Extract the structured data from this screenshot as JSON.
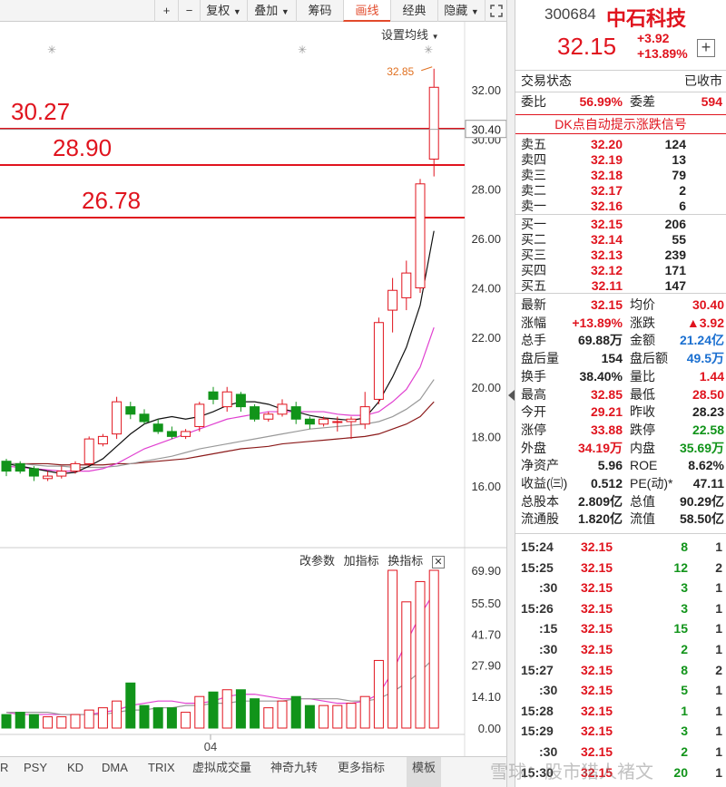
{
  "toolbar": {
    "buttons": [
      "+",
      "−",
      "复权",
      "叠加",
      "筹码",
      "画线",
      "经典",
      "隐藏"
    ],
    "active": "画线",
    "expand_icon": "expand-icon"
  },
  "chart": {
    "ma_setting": "设置均线",
    "high_label": "32.85",
    "cursor_price": "30.40",
    "price_ticks": [
      "32.00",
      "30.00",
      "28.00",
      "26.00",
      "24.00",
      "22.00",
      "20.00",
      "18.00",
      "16.00"
    ],
    "lines": [
      {
        "label": "30.27"
      },
      {
        "label": "28.90"
      },
      {
        "label": "26.78"
      }
    ],
    "indicator_buttons": [
      "改参数",
      "加指标",
      "换指标"
    ],
    "vol_ticks": [
      "69.90",
      "55.50",
      "41.70",
      "27.90",
      "14.10",
      "0.00"
    ],
    "date_label": "04"
  },
  "chart_data": {
    "type": "candlestick",
    "price_ylim": [
      15,
      33.2
    ],
    "vol_ylim": [
      0,
      70
    ],
    "candles": [
      {
        "o": 17.0,
        "c": 16.6,
        "h": 17.1,
        "l": 16.4,
        "v": 6
      },
      {
        "o": 16.9,
        "c": 16.6,
        "h": 17.0,
        "l": 16.5,
        "v": 7
      },
      {
        "o": 16.7,
        "c": 16.4,
        "h": 16.8,
        "l": 16.2,
        "v": 6
      },
      {
        "o": 16.3,
        "c": 16.4,
        "h": 16.6,
        "l": 16.2,
        "v": 5
      },
      {
        "o": 16.4,
        "c": 16.6,
        "h": 16.8,
        "l": 16.3,
        "v": 5
      },
      {
        "o": 16.6,
        "c": 16.9,
        "h": 17.0,
        "l": 16.5,
        "v": 6
      },
      {
        "o": 16.9,
        "c": 17.9,
        "h": 18.0,
        "l": 16.8,
        "v": 8
      },
      {
        "o": 17.7,
        "c": 18.0,
        "h": 18.1,
        "l": 17.6,
        "v": 9
      },
      {
        "o": 18.1,
        "c": 19.4,
        "h": 19.6,
        "l": 17.9,
        "v": 12
      },
      {
        "o": 19.2,
        "c": 18.9,
        "h": 19.4,
        "l": 18.7,
        "v": 20
      },
      {
        "o": 18.9,
        "c": 18.6,
        "h": 19.1,
        "l": 18.5,
        "v": 10
      },
      {
        "o": 18.5,
        "c": 18.2,
        "h": 18.7,
        "l": 18.1,
        "v": 9
      },
      {
        "o": 18.2,
        "c": 18.0,
        "h": 18.4,
        "l": 17.9,
        "v": 9
      },
      {
        "o": 18.0,
        "c": 18.2,
        "h": 18.3,
        "l": 17.9,
        "v": 7
      },
      {
        "o": 18.4,
        "c": 19.3,
        "h": 19.4,
        "l": 18.2,
        "v": 14
      },
      {
        "o": 19.8,
        "c": 19.5,
        "h": 20.0,
        "l": 19.3,
        "v": 16
      },
      {
        "o": 19.2,
        "c": 19.8,
        "h": 20.0,
        "l": 19.0,
        "v": 17
      },
      {
        "o": 19.7,
        "c": 19.2,
        "h": 19.8,
        "l": 19.0,
        "v": 17
      },
      {
        "o": 19.2,
        "c": 18.7,
        "h": 19.3,
        "l": 18.6,
        "v": 13
      },
      {
        "o": 18.7,
        "c": 18.9,
        "h": 19.0,
        "l": 18.6,
        "v": 9
      },
      {
        "o": 18.9,
        "c": 19.3,
        "h": 19.5,
        "l": 18.8,
        "v": 12
      },
      {
        "o": 19.2,
        "c": 18.7,
        "h": 19.4,
        "l": 18.5,
        "v": 14
      },
      {
        "o": 18.7,
        "c": 18.5,
        "h": 18.8,
        "l": 18.3,
        "v": 10
      },
      {
        "o": 18.5,
        "c": 18.7,
        "h": 18.8,
        "l": 18.4,
        "v": 10
      },
      {
        "o": 18.6,
        "c": 18.6,
        "h": 18.8,
        "l": 18.2,
        "v": 10
      },
      {
        "o": 18.6,
        "c": 18.7,
        "h": 18.8,
        "l": 17.9,
        "v": 11
      },
      {
        "o": 18.5,
        "c": 19.2,
        "h": 19.8,
        "l": 18.3,
        "v": 14
      },
      {
        "o": 19.5,
        "c": 22.6,
        "h": 22.8,
        "l": 19.3,
        "v": 30
      },
      {
        "o": 23.1,
        "c": 23.9,
        "h": 24.4,
        "l": 22.2,
        "v": 70
      },
      {
        "o": 23.6,
        "c": 24.6,
        "h": 25.1,
        "l": 23.1,
        "v": 56
      },
      {
        "o": 24.0,
        "c": 28.2,
        "h": 28.4,
        "l": 23.8,
        "v": 65
      },
      {
        "o": 29.2,
        "c": 32.1,
        "h": 32.85,
        "l": 28.5,
        "v": 70
      }
    ],
    "ma5": [
      16.9,
      16.8,
      16.7,
      16.6,
      16.5,
      16.55,
      16.8,
      17.1,
      17.6,
      18.1,
      18.5,
      18.7,
      18.8,
      18.7,
      18.8,
      19.0,
      19.25,
      19.4,
      19.4,
      19.3,
      19.1,
      19.0,
      18.85,
      18.75,
      18.7,
      18.65,
      18.75,
      19.4,
      20.4,
      21.6,
      23.3,
      26.3
    ],
    "ma10": [
      16.8,
      16.75,
      16.7,
      16.65,
      16.6,
      16.6,
      16.6,
      16.7,
      16.9,
      17.2,
      17.5,
      17.7,
      17.9,
      18.1,
      18.3,
      18.5,
      18.7,
      18.8,
      18.9,
      19.0,
      19.0,
      19.0,
      19.0,
      19.0,
      18.9,
      18.85,
      18.85,
      19.0,
      19.4,
      19.9,
      20.8,
      22.4
    ],
    "ma20": [
      16.9,
      16.9,
      16.85,
      16.8,
      16.8,
      16.75,
      16.75,
      16.75,
      16.8,
      16.9,
      17.0,
      17.1,
      17.2,
      17.35,
      17.5,
      17.6,
      17.7,
      17.8,
      17.9,
      18.0,
      18.1,
      18.2,
      18.3,
      18.35,
      18.4,
      18.45,
      18.5,
      18.6,
      18.8,
      19.1,
      19.5,
      20.3
    ],
    "ma30": [
      16.9,
      16.9,
      16.9,
      16.9,
      16.85,
      16.85,
      16.85,
      16.85,
      16.9,
      16.9,
      16.95,
      17.0,
      17.05,
      17.1,
      17.2,
      17.3,
      17.4,
      17.5,
      17.55,
      17.6,
      17.7,
      17.75,
      17.8,
      17.85,
      17.9,
      17.95,
      18.0,
      18.1,
      18.3,
      18.5,
      18.8,
      19.4
    ],
    "vol_ma1": [
      7,
      6,
      6,
      6,
      6,
      6,
      6,
      7,
      8,
      10,
      11,
      12,
      12,
      11,
      11,
      12,
      14,
      15,
      15,
      14,
      13,
      13,
      13,
      12,
      11,
      11,
      12,
      15,
      25,
      38,
      50,
      60
    ],
    "vol_ma2": [
      7,
      7,
      7,
      7,
      6,
      6,
      6,
      6,
      7,
      8,
      8,
      9,
      9,
      10,
      10,
      11,
      11,
      12,
      12,
      12,
      12,
      13,
      13,
      13,
      13,
      12,
      12,
      13,
      16,
      20,
      25,
      31
    ]
  },
  "bottom_tabs": [
    "R",
    "PSY",
    "KD",
    "DMA",
    "TRIX",
    "虚拟成交量",
    "神奇九转",
    "更多指标",
    "模板"
  ],
  "bottom_active": "模板",
  "watermark": "雪球：股市猎人褚文",
  "panel": {
    "code": "300684",
    "name": "中石科技",
    "price": "32.15",
    "change": "+3.92",
    "change_pct": "+13.89%",
    "status_label": "交易状态",
    "status_value": "已收市",
    "weibi_label": "委比",
    "weibi_value": "56.99%",
    "weicha_label": "委差",
    "weicha_value": "594",
    "dk_signal": "DK点自动提示涨跌信号",
    "asks": [
      {
        "label": "卖五",
        "price": "32.20",
        "vol": "124"
      },
      {
        "label": "卖四",
        "price": "32.19",
        "vol": "13"
      },
      {
        "label": "卖三",
        "price": "32.18",
        "vol": "79"
      },
      {
        "label": "卖二",
        "price": "32.17",
        "vol": "2"
      },
      {
        "label": "卖一",
        "price": "32.16",
        "vol": "6"
      }
    ],
    "bids": [
      {
        "label": "买一",
        "price": "32.15",
        "vol": "206"
      },
      {
        "label": "买二",
        "price": "32.14",
        "vol": "55"
      },
      {
        "label": "买三",
        "price": "32.13",
        "vol": "239"
      },
      {
        "label": "买四",
        "price": "32.12",
        "vol": "171"
      },
      {
        "label": "买五",
        "price": "32.11",
        "vol": "147"
      }
    ],
    "stats": [
      [
        {
          "l": "最新",
          "v": "32.15",
          "c": "red"
        },
        {
          "l": "均价",
          "v": "30.40",
          "c": "red"
        }
      ],
      [
        {
          "l": "涨幅",
          "v": "+13.89%",
          "c": "red"
        },
        {
          "l": "涨跌",
          "v": "▲3.92",
          "c": "red"
        }
      ],
      [
        {
          "l": "总手",
          "v": "69.88万",
          "c": "dark"
        },
        {
          "l": "金额",
          "v": "21.24亿",
          "c": "blue"
        }
      ],
      [
        {
          "l": "盘后量",
          "v": "154",
          "c": "dark"
        },
        {
          "l": "盘后额",
          "v": "49.5万",
          "c": "blue"
        }
      ],
      [
        {
          "l": "换手",
          "v": "38.40%",
          "c": "dark"
        },
        {
          "l": "量比",
          "v": "1.44",
          "c": "red"
        }
      ],
      [
        {
          "l": "最高",
          "v": "32.85",
          "c": "red"
        },
        {
          "l": "最低",
          "v": "28.50",
          "c": "red"
        }
      ],
      [
        {
          "l": "今开",
          "v": "29.21",
          "c": "red"
        },
        {
          "l": "昨收",
          "v": "28.23",
          "c": "dark"
        }
      ],
      [
        {
          "l": "涨停",
          "v": "33.88",
          "c": "red"
        },
        {
          "l": "跌停",
          "v": "22.58",
          "c": "green"
        }
      ],
      [
        {
          "l": "外盘",
          "v": "34.19万",
          "c": "red"
        },
        {
          "l": "内盘",
          "v": "35.69万",
          "c": "green"
        }
      ],
      [
        {
          "l": "净资产",
          "v": "5.96",
          "c": "dark"
        },
        {
          "l": "ROE",
          "v": "8.62%",
          "c": "dark"
        }
      ],
      [
        {
          "l": "收益(㈢)",
          "v": "0.512",
          "c": "dark"
        },
        {
          "l": "PE(动)*",
          "v": "47.11",
          "c": "dark"
        }
      ],
      [
        {
          "l": "总股本",
          "v": "2.809亿",
          "c": "dark"
        },
        {
          "l": "总值",
          "v": "90.29亿",
          "c": "dark"
        }
      ],
      [
        {
          "l": "流通股",
          "v": "1.820亿",
          "c": "dark"
        },
        {
          "l": "流值",
          "v": "58.50亿",
          "c": "dark"
        }
      ]
    ],
    "ticks": [
      {
        "t": "15:24",
        "p": "32.15",
        "v": "8",
        "n": "1"
      },
      {
        "t": "15:25",
        "p": "32.15",
        "v": "12",
        "n": "2"
      },
      {
        "t": ":30",
        "p": "32.15",
        "v": "3",
        "n": "1"
      },
      {
        "t": "15:26",
        "p": "32.15",
        "v": "3",
        "n": "1"
      },
      {
        "t": ":15",
        "p": "32.15",
        "v": "15",
        "n": "1"
      },
      {
        "t": ":30",
        "p": "32.15",
        "v": "2",
        "n": "1"
      },
      {
        "t": "15:27",
        "p": "32.15",
        "v": "8",
        "n": "2"
      },
      {
        "t": ":30",
        "p": "32.15",
        "v": "5",
        "n": "1"
      },
      {
        "t": "15:28",
        "p": "32.15",
        "v": "1",
        "n": "1"
      },
      {
        "t": "15:29",
        "p": "32.15",
        "v": "3",
        "n": "1"
      },
      {
        "t": ":30",
        "p": "32.15",
        "v": "2",
        "n": "1"
      },
      {
        "t": "15:30",
        "p": "32.15",
        "v": "20",
        "n": "1"
      }
    ]
  },
  "colors": {
    "up": "#e0141e",
    "down": "#11941a",
    "ma5": "#111111",
    "ma10": "#e040d0",
    "ma20": "#999999",
    "ma30": "#8b1a1a"
  }
}
